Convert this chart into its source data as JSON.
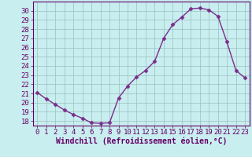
{
  "x": [
    0,
    1,
    2,
    3,
    4,
    5,
    6,
    7,
    8,
    9,
    10,
    11,
    12,
    13,
    14,
    15,
    16,
    17,
    18,
    19,
    20,
    21,
    22,
    23
  ],
  "y": [
    21.1,
    20.4,
    19.8,
    19.2,
    18.7,
    18.3,
    17.8,
    17.75,
    17.8,
    20.5,
    21.8,
    22.8,
    23.5,
    24.5,
    27.0,
    28.5,
    29.3,
    30.2,
    30.3,
    30.1,
    29.4,
    26.6,
    23.5,
    22.7
  ],
  "line_color": "#7B2D8B",
  "marker": "D",
  "markersize": 2.5,
  "linewidth": 1.0,
  "bg_color": "#c8eef0",
  "grid_color": "#9bbfbf",
  "xlabel": "Windchill (Refroidissement éolien,°C)",
  "xlim": [
    -0.5,
    23.5
  ],
  "ylim": [
    17.5,
    31.0
  ],
  "yticks": [
    18,
    19,
    20,
    21,
    22,
    23,
    24,
    25,
    26,
    27,
    28,
    29,
    30
  ],
  "xticks": [
    0,
    1,
    2,
    3,
    4,
    5,
    6,
    7,
    8,
    9,
    10,
    11,
    12,
    13,
    14,
    15,
    16,
    17,
    18,
    19,
    20,
    21,
    22,
    23
  ],
  "xlabel_fontsize": 7.0,
  "tick_fontsize": 6.5,
  "tick_color": "#660066",
  "spine_color": "#660066"
}
